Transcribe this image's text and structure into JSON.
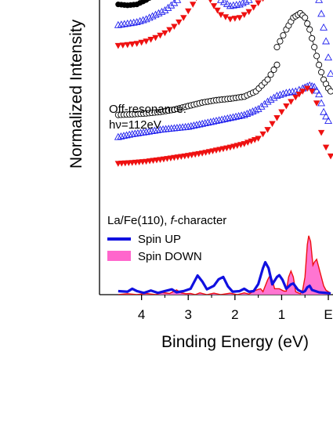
{
  "chart_data": {
    "type": "line",
    "xlabel": "Binding Energy (eV)",
    "ylabel": "Normalized Intensity",
    "x_axis_reversed": true,
    "xlim": [
      4.9,
      -0.1
    ],
    "x_ticks": [
      {
        "value": 4,
        "label": "4"
      },
      {
        "value": 3,
        "label": "3"
      },
      {
        "value": 2,
        "label": "2"
      },
      {
        "value": 1,
        "label": "1"
      },
      {
        "value": 0,
        "label": "E"
      }
    ],
    "y_ticks_labeled": false,
    "grid": false,
    "annotations": {
      "off_resonance_line1": "Off-resonance:",
      "off_resonance_line2": "hν=112eV"
    },
    "legend": {
      "title_prefix": "La/Fe(110), ",
      "title_italic": "f",
      "title_suffix": "-character",
      "placement": "lower-left",
      "entries": [
        {
          "label": "Spin UP",
          "color": "#1010e0",
          "style": "line"
        },
        {
          "label": "Spin DOWN",
          "color": "#ff66cc",
          "style": "fill"
        }
      ]
    },
    "series": [
      {
        "group": "top",
        "marker": "filled-circle",
        "color": "#000000",
        "points": [
          [
            4.5,
            0.985
          ],
          [
            4.3,
            0.982
          ],
          [
            4.1,
            0.985
          ],
          [
            3.9,
            1.0
          ],
          [
            3.7,
            1.02
          ],
          [
            3.5,
            1.045
          ],
          [
            3.3,
            1.075
          ]
        ]
      },
      {
        "group": "top",
        "marker": "open-triangle-up",
        "color": "#2222ee",
        "points": [
          [
            4.5,
            0.915
          ],
          [
            4.3,
            0.92
          ],
          [
            4.1,
            0.925
          ],
          [
            3.9,
            0.935
          ],
          [
            3.7,
            0.95
          ],
          [
            3.5,
            0.965
          ],
          [
            3.3,
            0.99
          ],
          [
            3.1,
            1.02
          ],
          [
            2.9,
            1.06
          ],
          [
            2.75,
            1.09
          ],
          [
            2.6,
            1.08
          ],
          [
            2.45,
            1.04
          ],
          [
            2.3,
            1.0
          ],
          [
            2.1,
            0.98
          ],
          [
            1.9,
            0.985
          ],
          [
            1.7,
            1.0
          ],
          [
            1.5,
            1.04
          ],
          [
            1.3,
            1.08
          ],
          [
            1.1,
            1.1
          ],
          [
            0.9,
            1.11
          ],
          [
            0.7,
            1.11
          ],
          [
            0.5,
            1.105
          ],
          [
            0.35,
            1.1
          ],
          [
            0.2,
            1.0
          ],
          [
            0.05,
            0.86
          ],
          [
            -0.05,
            0.75
          ]
        ]
      },
      {
        "group": "top",
        "marker": "filled-triangle-down",
        "color": "#ee1111",
        "points": [
          [
            4.5,
            0.845
          ],
          [
            4.3,
            0.848
          ],
          [
            4.1,
            0.852
          ],
          [
            3.9,
            0.86
          ],
          [
            3.7,
            0.872
          ],
          [
            3.5,
            0.888
          ],
          [
            3.3,
            0.91
          ],
          [
            3.1,
            0.94
          ],
          [
            2.9,
            0.985
          ],
          [
            2.75,
            1.03
          ],
          [
            2.6,
            1.02
          ],
          [
            2.45,
            0.98
          ],
          [
            2.3,
            0.95
          ],
          [
            2.1,
            0.935
          ],
          [
            1.9,
            0.94
          ],
          [
            1.7,
            0.96
          ],
          [
            1.5,
            0.99
          ],
          [
            1.3,
            1.02
          ],
          [
            1.1,
            1.045
          ],
          [
            0.9,
            1.065
          ],
          [
            0.7,
            1.075
          ],
          [
            0.5,
            1.08
          ],
          [
            0.35,
            1.09
          ],
          [
            0.2,
            1.1
          ],
          [
            0.1,
            1.1
          ],
          [
            0.0,
            1.07
          ]
        ]
      },
      {
        "group": "top",
        "marker": "open-circle",
        "color": "#000000",
        "points": [
          [
            1.1,
            0.84
          ],
          [
            0.9,
            0.9
          ],
          [
            0.75,
            0.94
          ],
          [
            0.6,
            0.955
          ],
          [
            0.5,
            0.94
          ],
          [
            0.4,
            0.9
          ],
          [
            0.3,
            0.84
          ],
          [
            0.2,
            0.78
          ],
          [
            0.1,
            0.73
          ],
          [
            0.0,
            0.7
          ],
          [
            -0.05,
            0.69
          ]
        ]
      },
      {
        "group": "off-resonance",
        "marker": "open-circle",
        "color": "#000000",
        "points": [
          [
            4.5,
            0.61
          ],
          [
            4.2,
            0.612
          ],
          [
            3.9,
            0.615
          ],
          [
            3.6,
            0.62
          ],
          [
            3.3,
            0.628
          ],
          [
            3.0,
            0.64
          ],
          [
            2.7,
            0.652
          ],
          [
            2.4,
            0.66
          ],
          [
            2.1,
            0.665
          ],
          [
            1.8,
            0.672
          ],
          [
            1.55,
            0.69
          ],
          [
            1.3,
            0.73
          ],
          [
            1.1,
            0.78
          ]
        ]
      },
      {
        "group": "off-resonance",
        "marker": "open-triangle-up",
        "color": "#2222ee",
        "points": [
          [
            4.5,
            0.535
          ],
          [
            4.2,
            0.545
          ],
          [
            3.9,
            0.552
          ],
          [
            3.6,
            0.56
          ],
          [
            3.3,
            0.565
          ],
          [
            3.0,
            0.57
          ],
          [
            2.7,
            0.58
          ],
          [
            2.4,
            0.59
          ],
          [
            2.1,
            0.6
          ],
          [
            1.8,
            0.61
          ],
          [
            1.5,
            0.63
          ],
          [
            1.3,
            0.655
          ],
          [
            1.1,
            0.675
          ],
          [
            0.9,
            0.685
          ],
          [
            0.7,
            0.69
          ],
          [
            0.55,
            0.7
          ],
          [
            0.4,
            0.71
          ],
          [
            0.3,
            0.705
          ],
          [
            0.2,
            0.68
          ],
          [
            0.1,
            0.62
          ],
          [
            0.0,
            0.59
          ]
        ]
      },
      {
        "group": "off-resonance",
        "marker": "filled-triangle-down",
        "color": "#ee1111",
        "points": [
          [
            4.5,
            0.445
          ],
          [
            4.2,
            0.448
          ],
          [
            3.9,
            0.452
          ],
          [
            3.6,
            0.458
          ],
          [
            3.3,
            0.465
          ],
          [
            3.0,
            0.472
          ],
          [
            2.7,
            0.48
          ],
          [
            2.4,
            0.49
          ],
          [
            2.1,
            0.5
          ],
          [
            1.8,
            0.512
          ],
          [
            1.5,
            0.53
          ],
          [
            1.3,
            0.56
          ],
          [
            1.1,
            0.6
          ],
          [
            0.9,
            0.64
          ],
          [
            0.7,
            0.67
          ],
          [
            0.55,
            0.69
          ],
          [
            0.45,
            0.7
          ],
          [
            0.35,
            0.69
          ],
          [
            0.25,
            0.65
          ],
          [
            0.15,
            0.55
          ],
          [
            0.05,
            0.5
          ],
          [
            -0.05,
            0.47
          ]
        ]
      },
      {
        "group": "dos",
        "name": "Spin UP",
        "color": "#1010e0",
        "style": "line",
        "points": [
          [
            4.5,
            0.012
          ],
          [
            4.3,
            0.01
          ],
          [
            4.2,
            0.02
          ],
          [
            4.1,
            0.012
          ],
          [
            3.95,
            0.006
          ],
          [
            3.8,
            0.014
          ],
          [
            3.65,
            0.006
          ],
          [
            3.5,
            0.012
          ],
          [
            3.35,
            0.018
          ],
          [
            3.25,
            0.008
          ],
          [
            3.1,
            0.012
          ],
          [
            2.95,
            0.02
          ],
          [
            2.8,
            0.065
          ],
          [
            2.7,
            0.045
          ],
          [
            2.6,
            0.018
          ],
          [
            2.45,
            0.03
          ],
          [
            2.35,
            0.052
          ],
          [
            2.25,
            0.06
          ],
          [
            2.15,
            0.028
          ],
          [
            2.05,
            0.01
          ],
          [
            1.9,
            0.012
          ],
          [
            1.8,
            0.02
          ],
          [
            1.7,
            0.01
          ],
          [
            1.6,
            0.012
          ],
          [
            1.5,
            0.036
          ],
          [
            1.4,
            0.09
          ],
          [
            1.35,
            0.11
          ],
          [
            1.28,
            0.09
          ],
          [
            1.2,
            0.035
          ],
          [
            1.1,
            0.06
          ],
          [
            1.05,
            0.066
          ],
          [
            0.98,
            0.05
          ],
          [
            0.9,
            0.02
          ],
          [
            0.8,
            0.035
          ],
          [
            0.75,
            0.038
          ],
          [
            0.65,
            0.016
          ],
          [
            0.55,
            0.008
          ],
          [
            0.5,
            0.012
          ],
          [
            0.45,
            0.025
          ],
          [
            0.4,
            0.03
          ],
          [
            0.35,
            0.016
          ],
          [
            0.2,
            0.008
          ],
          [
            0.05,
            0.006
          ],
          [
            -0.05,
            0.004
          ]
        ]
      },
      {
        "group": "dos",
        "name": "Spin DOWN",
        "color": "#ff66cc",
        "edge_color": "#ee1111",
        "style": "fill",
        "points": [
          [
            4.5,
            0.0
          ],
          [
            4.3,
            0.003
          ],
          [
            4.1,
            0.0
          ],
          [
            3.9,
            0.004
          ],
          [
            3.7,
            0.0
          ],
          [
            3.55,
            0.007
          ],
          [
            3.4,
            0.004
          ],
          [
            3.25,
            0.016
          ],
          [
            3.15,
            0.006
          ],
          [
            3.05,
            0.003
          ],
          [
            2.95,
            0.004
          ],
          [
            2.85,
            0.0
          ],
          [
            2.75,
            0.006
          ],
          [
            2.6,
            0.0
          ],
          [
            2.45,
            0.005
          ],
          [
            2.3,
            0.0
          ],
          [
            2.1,
            0.005
          ],
          [
            1.95,
            0.0
          ],
          [
            1.8,
            0.006
          ],
          [
            1.7,
            0.002
          ],
          [
            1.6,
            0.012
          ],
          [
            1.5,
            0.018
          ],
          [
            1.45,
            0.02
          ],
          [
            1.4,
            0.01
          ],
          [
            1.3,
            0.05
          ],
          [
            1.25,
            0.065
          ],
          [
            1.2,
            0.05
          ],
          [
            1.15,
            0.02
          ],
          [
            1.05,
            0.02
          ],
          [
            0.95,
            0.012
          ],
          [
            0.9,
            0.012
          ],
          [
            0.85,
            0.06
          ],
          [
            0.8,
            0.08
          ],
          [
            0.75,
            0.06
          ],
          [
            0.7,
            0.01
          ],
          [
            0.6,
            0.003
          ],
          [
            0.55,
            0.015
          ],
          [
            0.5,
            0.06
          ],
          [
            0.45,
            0.17
          ],
          [
            0.42,
            0.2
          ],
          [
            0.38,
            0.18
          ],
          [
            0.33,
            0.1
          ],
          [
            0.3,
            0.11
          ],
          [
            0.25,
            0.12
          ],
          [
            0.2,
            0.09
          ],
          [
            0.15,
            0.06
          ],
          [
            0.1,
            0.03
          ],
          [
            0.05,
            0.015
          ],
          [
            -0.05,
            0.005
          ]
        ]
      }
    ]
  }
}
